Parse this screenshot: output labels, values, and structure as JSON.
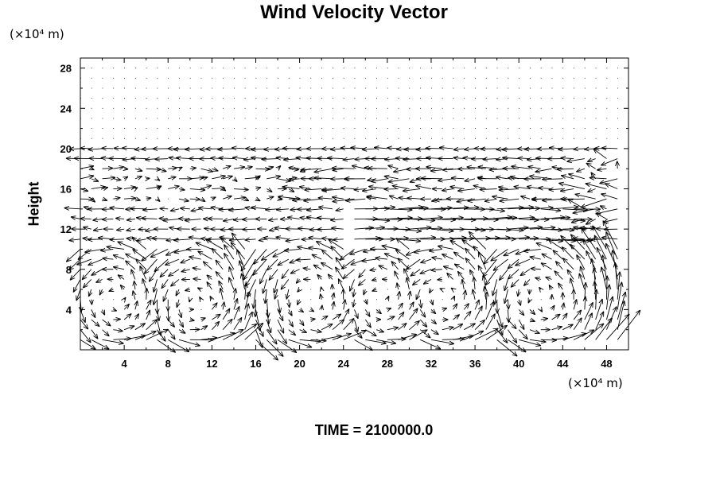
{
  "chart_data": {
    "type": "quiver",
    "title": "Wind Velocity Vector",
    "xlabel": "",
    "ylabel": "Height",
    "x_unit": "(×10⁴ m)",
    "y_unit": "(×10⁴ m)",
    "xlim": [
      0,
      50
    ],
    "ylim": [
      0,
      29
    ],
    "x_ticks": [
      "4",
      "8",
      "12",
      "16",
      "20",
      "24",
      "28",
      "32",
      "36",
      "40",
      "44",
      "48"
    ],
    "y_ticks": [
      "4",
      "8",
      "12",
      "16",
      "20",
      "24",
      "28"
    ],
    "grid": false,
    "annotations": {
      "time_label": "TIME = 2100000.0"
    },
    "series": [
      {
        "band_height": 20.0,
        "level": "calm"
      },
      {
        "band_height": 19.0,
        "level": "westward"
      },
      {
        "band_height": 17.0,
        "level": "mixed"
      },
      {
        "band_height": 13.0,
        "level": "eastward"
      },
      {
        "band_height": 11.0,
        "level": "eastward"
      }
    ]
  }
}
